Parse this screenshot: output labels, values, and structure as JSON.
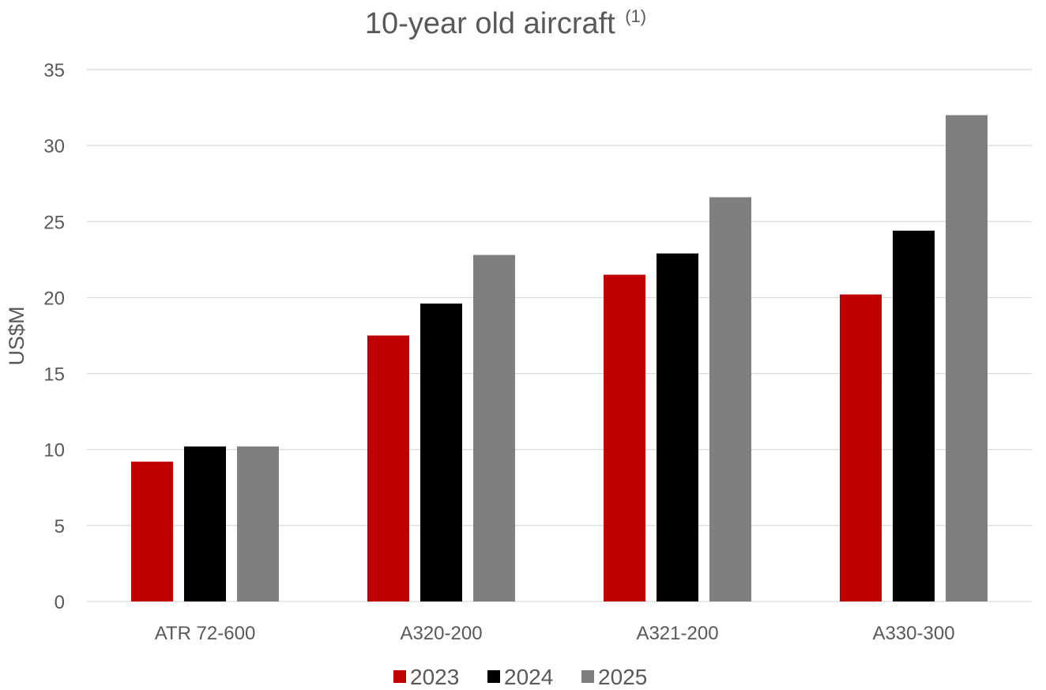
{
  "chart_data": {
    "type": "bar",
    "title": "10-year old aircraft",
    "title_superscript": "(1)",
    "xlabel": "",
    "ylabel": "US$M",
    "categories": [
      "ATR 72-600",
      "A320-200",
      "A321-200",
      "A330-300"
    ],
    "series": [
      {
        "name": "2023",
        "color": "#c00000",
        "values": [
          9.2,
          17.5,
          21.5,
          20.2
        ]
      },
      {
        "name": "2024",
        "color": "#000000",
        "values": [
          10.2,
          19.6,
          22.9,
          24.4
        ]
      },
      {
        "name": "2025",
        "color": "#7f7f7f",
        "values": [
          10.2,
          22.8,
          26.6,
          32.0
        ]
      }
    ],
    "ylim": [
      0,
      35
    ],
    "yticks": [
      "0",
      "5",
      "10",
      "15",
      "20",
      "25",
      "30",
      "35"
    ],
    "grid": true,
    "legend_position": "bottom"
  }
}
